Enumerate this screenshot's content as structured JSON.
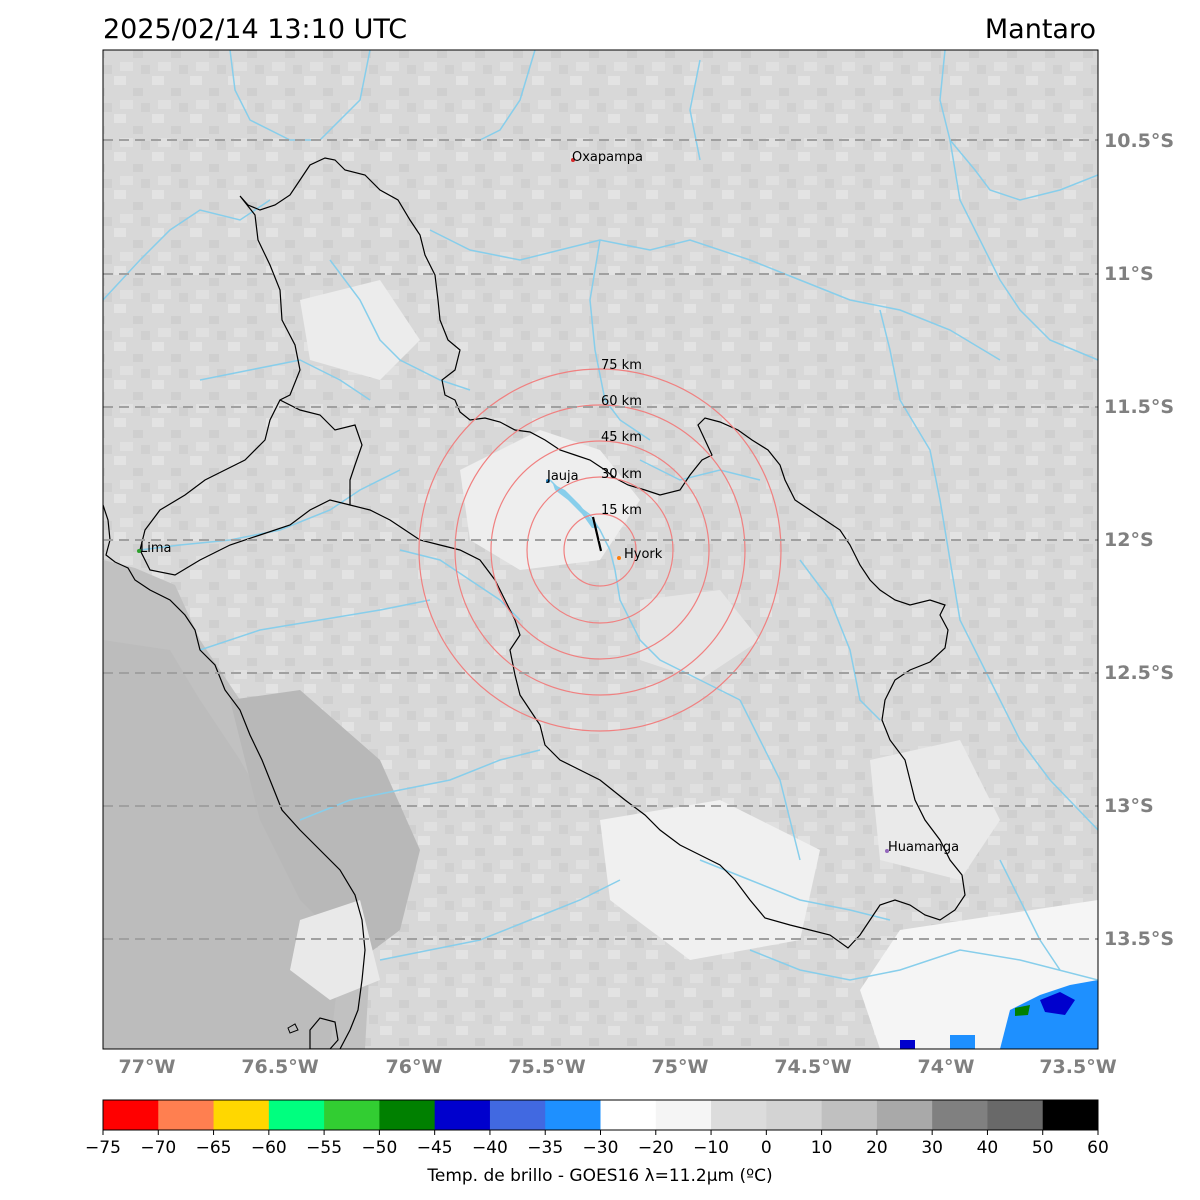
{
  "title": "2025/02/14 13:10 UTC",
  "region": "Mantaro",
  "lat_labels": [
    "10.5°S",
    "11°S",
    "11.5°S",
    "12°S",
    "12.5°S",
    "13°S",
    "13.5°S"
  ],
  "lon_labels": [
    "77°W",
    "76.5°W",
    "76°W",
    "75.5°W",
    "75°W",
    "74.5°W",
    "74°W",
    "73.5°W"
  ],
  "cities": [
    {
      "name": "Oxapampa",
      "color": "#d62728"
    },
    {
      "name": "Jauja",
      "color": "#1f77b4"
    },
    {
      "name": "Hyork",
      "color": "#ff7f0e"
    },
    {
      "name": "Lima",
      "color": "#2ca02c"
    },
    {
      "name": "Huamanga",
      "color": "#9467bd"
    }
  ],
  "rings": [
    "15 km",
    "30 km",
    "45 km",
    "60 km",
    "75 km"
  ],
  "colorbar": {
    "ticks": [
      "−75",
      "−70",
      "−65",
      "−60",
      "−55",
      "−50",
      "−45",
      "−40",
      "−35",
      "−30",
      "−20",
      "−10",
      "0",
      "10",
      "20",
      "30",
      "40",
      "50",
      "60"
    ],
    "colors": [
      "#ff0000",
      "#ff7f50",
      "#ffd700",
      "#00ff7f",
      "#32cd32",
      "#008000",
      "#0000cd",
      "#4169e1",
      "#1e90ff",
      "#ffffff",
      "#f5f5f5",
      "#dcdcdc",
      "#d3d3d3",
      "#c0c0c0",
      "#a9a9a9",
      "#808080",
      "#696969",
      "#000000"
    ],
    "label": "Temp. de brillo - GOES16 λ=11.2μm (ºC)"
  },
  "palette": {
    "river": "#87ceeb",
    "ring": "#f08080",
    "gridline": "#a0a0a0",
    "axis_label": "#808080"
  }
}
